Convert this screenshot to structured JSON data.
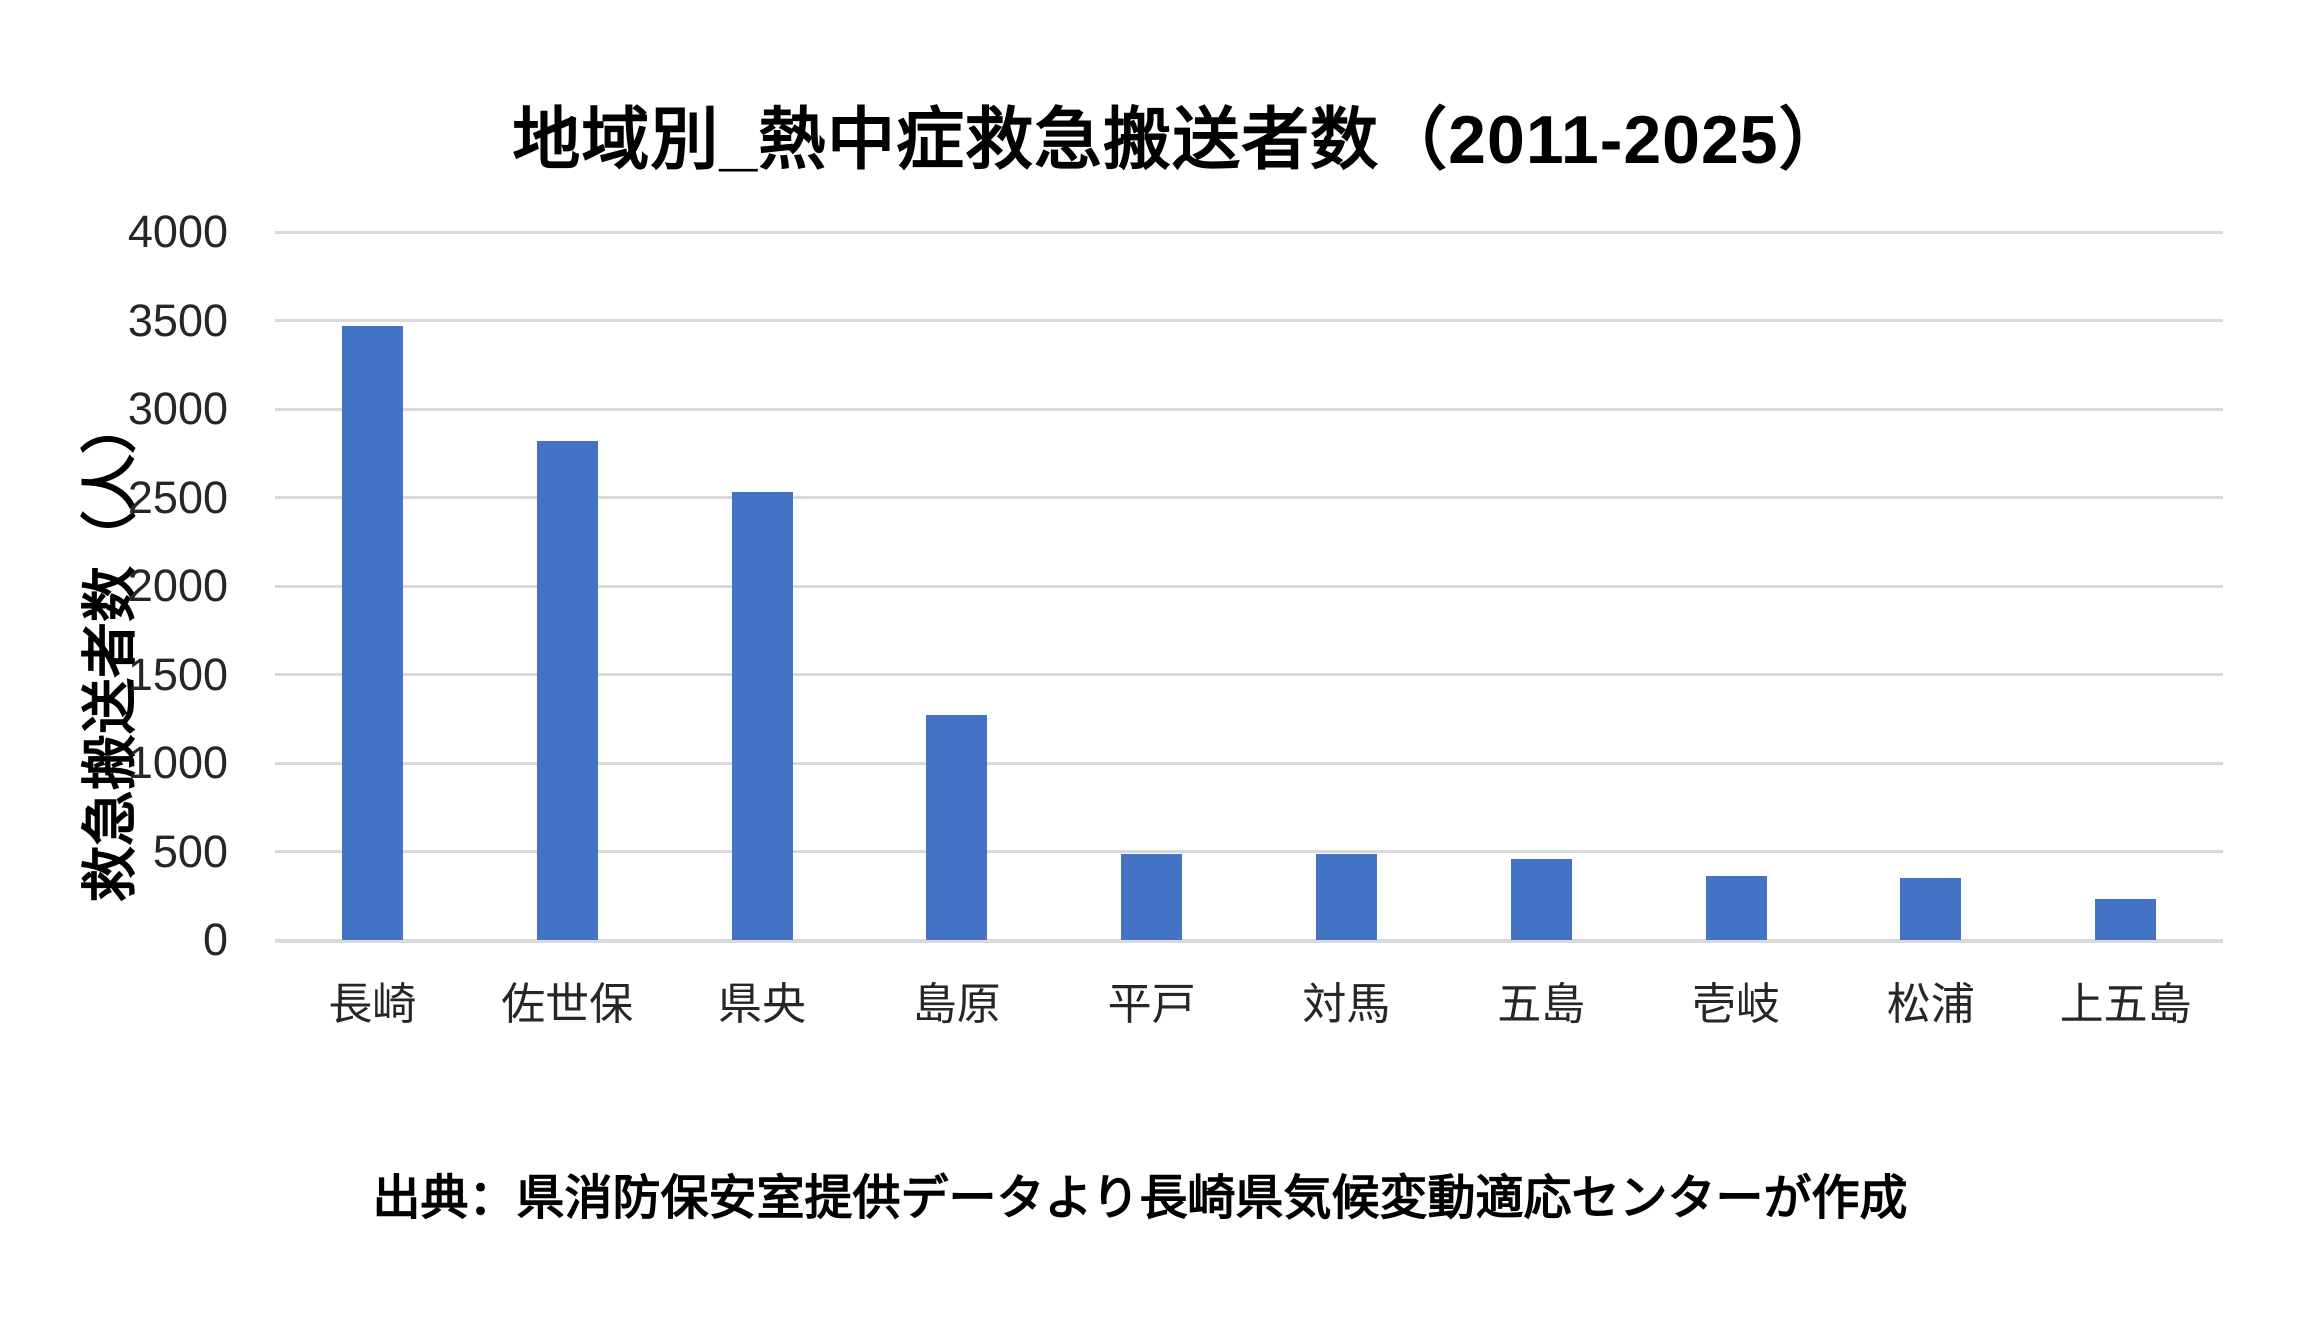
{
  "page": {
    "background": "#ffffff"
  },
  "chart_data": {
    "type": "bar",
    "title": "地域別_熱中症救急搬送者数（2011-2025）",
    "ylabel": "救急搬送者数（人）",
    "xlabel": "",
    "categories": [
      "長崎",
      "佐世保",
      "県央",
      "島原",
      "平戸",
      "対馬",
      "五島",
      "壱岐",
      "松浦",
      "上五島"
    ],
    "values": [
      3470,
      2820,
      2530,
      1270,
      485,
      485,
      455,
      360,
      350,
      230
    ],
    "ylim": [
      0,
      4000
    ],
    "ytick_interval": 500,
    "ytick_labels": [
      "0",
      "500",
      "1000",
      "1500",
      "2000",
      "2500",
      "3000",
      "3500",
      "4000"
    ],
    "grid": "horizontal",
    "legend_position": "none",
    "bar_color": "#4472C4",
    "gridline_color": "#d9d9d9",
    "tick_label_color": "#262626",
    "title_color": "#000000"
  },
  "source_note": "出典：県消防保安室提供データより長崎県気候変動適応センターが作成"
}
